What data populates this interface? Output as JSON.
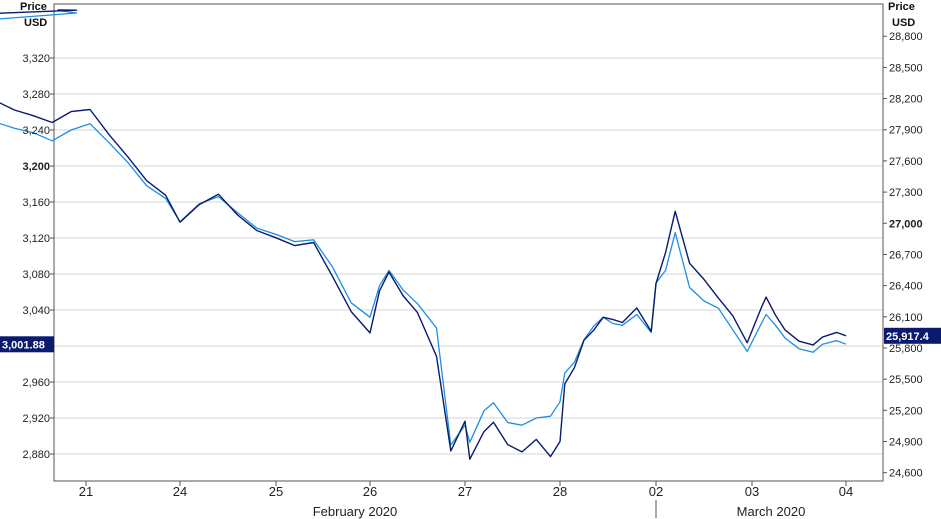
{
  "chart_data": {
    "type": "line",
    "left_axis": {
      "title_line1": "Price",
      "title_line2": "USD",
      "ylim": [
        2850,
        3380
      ],
      "ticks": [
        2880,
        2920,
        2960,
        3000,
        3040,
        3080,
        3120,
        3160,
        3200,
        3240,
        3280,
        3320
      ],
      "tick_labels": [
        "2,880",
        "2,920",
        "2,960",
        "3,000",
        "3,040",
        "3,080",
        "3,120",
        "3,160",
        "3,200",
        "3,240",
        "3,280",
        "3,320"
      ],
      "bold_tick": "3,200",
      "current_value": 3001.88,
      "current_label": "3,001.88"
    },
    "right_axis": {
      "title_line1": "Price",
      "title_line2": "USD",
      "ylim": [
        24520,
        29110
      ],
      "ticks": [
        24600,
        24900,
        25200,
        25500,
        25800,
        26100,
        26400,
        26700,
        27000,
        27300,
        27600,
        27900,
        28200,
        28500,
        28800
      ],
      "tick_labels": [
        "24,600",
        "24,900",
        "25,200",
        "25,500",
        "25,800",
        "26,100",
        "26,400",
        "26,700",
        "27,000",
        "27,300",
        "27,600",
        "27,900",
        "28,200",
        "28,500",
        "28,800"
      ],
      "bold_tick": "27,000",
      "current_value": 25917.4,
      "current_label": "25,917.4"
    },
    "x_axis": {
      "categories": [
        "21",
        "24",
        "25",
        "26",
        "27",
        "28",
        "02",
        "03",
        "04"
      ],
      "months": [
        "February 2020",
        "March 2020"
      ]
    },
    "series": [
      {
        "axis": "left",
        "color": "#1e8fe1",
        "x": [
          20.7,
          20.9,
          21.0,
          21.05,
          21.2,
          21.4,
          21.6,
          21.8,
          21.95,
          22.0,
          22.02,
          22.2,
          22.4,
          22.6,
          22.8,
          23.0,
          23.2,
          23.4,
          23.6,
          23.8,
          24.0,
          24.2,
          24.4,
          24.6,
          24.8,
          25.0,
          25.2,
          25.4,
          25.6,
          25.8,
          26.0,
          26.1,
          26.2,
          26.35,
          26.5,
          26.7,
          26.85,
          27.0,
          27.05,
          27.2,
          27.3,
          27.45,
          27.6,
          27.75,
          27.9,
          28.0,
          28.05,
          28.15,
          28.25,
          28.35,
          28.45,
          28.55,
          28.65,
          28.8,
          28.95,
          29.0,
          29.1,
          29.2,
          29.35,
          29.5,
          29.65,
          29.8,
          29.95,
          30.1,
          30.15,
          30.25,
          30.35,
          30.5,
          30.65,
          30.75,
          30.9,
          31.0
        ],
        "values": [
          3373,
          3370,
          3355,
          3336,
          3330,
          3340,
          3337,
          3332,
          3342,
          3340,
          3248,
          3242,
          3237,
          3228,
          3240,
          3247,
          3226,
          3204,
          3178,
          3164,
          3138,
          3158,
          3166,
          3148,
          3131,
          3124,
          3116,
          3118,
          3088,
          3048,
          3032,
          3067,
          3084,
          3062,
          3047,
          3020,
          2890,
          2912,
          2893,
          2928,
          2937,
          2915,
          2912,
          2920,
          2922,
          2938,
          2970,
          2982,
          3007,
          3022,
          3032,
          3025,
          3023,
          3035,
          3015,
          3070,
          3084,
          3126,
          3065,
          3050,
          3042,
          3018,
          2994,
          3025,
          3035,
          3023,
          3009,
          2997,
          2993,
          3002,
          3006,
          3002
        ]
      },
      {
        "axis": "right",
        "color": "#0a1a6e",
        "x": [
          20.7,
          20.9,
          21.0,
          21.05,
          21.2,
          21.4,
          21.6,
          21.8,
          21.95,
          22.0,
          22.02,
          22.2,
          22.4,
          22.6,
          22.8,
          23.0,
          23.2,
          23.4,
          23.6,
          23.8,
          24.0,
          24.2,
          24.4,
          24.6,
          24.8,
          25.0,
          25.2,
          25.4,
          25.6,
          25.8,
          26.0,
          26.1,
          26.2,
          26.35,
          26.5,
          26.7,
          26.85,
          27.0,
          27.05,
          27.2,
          27.3,
          27.45,
          27.6,
          27.75,
          27.9,
          28.0,
          28.05,
          28.15,
          28.25,
          28.35,
          28.45,
          28.55,
          28.65,
          28.8,
          28.95,
          29.0,
          29.1,
          29.2,
          29.35,
          29.5,
          29.65,
          29.8,
          29.95,
          30.1,
          30.15,
          30.25,
          30.35,
          30.5,
          30.65,
          30.75,
          30.9,
          31.0
        ],
        "values": [
          29052,
          29050,
          28985,
          28830,
          28800,
          28915,
          28925,
          28875,
          28955,
          28940,
          28170,
          28090,
          28035,
          27970,
          28075,
          28095,
          27855,
          27640,
          27410,
          27270,
          27010,
          27180,
          27280,
          27080,
          26930,
          26860,
          26785,
          26815,
          26490,
          26150,
          25945,
          26350,
          26530,
          26300,
          26140,
          25720,
          24810,
          25095,
          24730,
          24995,
          25085,
          24870,
          24800,
          24920,
          24755,
          24900,
          25455,
          25610,
          25875,
          25970,
          26095,
          26075,
          26045,
          26185,
          25960,
          26420,
          26720,
          27115,
          26615,
          26460,
          26280,
          26110,
          25850,
          26190,
          26290,
          26115,
          25975,
          25865,
          25830,
          25905,
          25950,
          25917
        ]
      }
    ]
  }
}
